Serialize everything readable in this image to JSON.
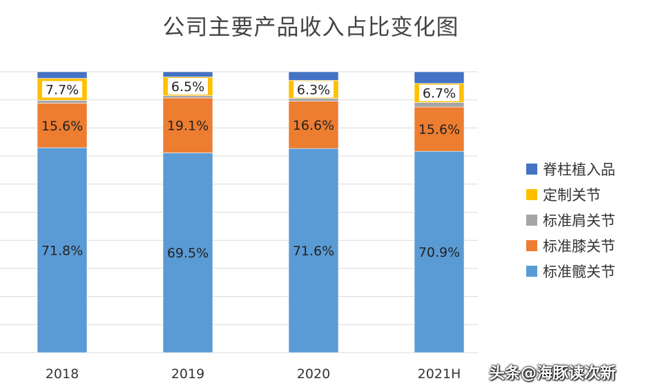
{
  "chart_data": {
    "type": "bar",
    "stacked": true,
    "percent": true,
    "title": "公司主要产品收入占比变化图",
    "categories": [
      "2018",
      "2019",
      "2020",
      "2021H"
    ],
    "series": [
      {
        "name": "标准髋关节",
        "color": "#5B9BD5",
        "values": [
          71.8,
          69.5,
          71.6,
          70.9
        ],
        "labels": [
          "71.8%",
          "69.5%",
          "71.6%",
          "70.9%"
        ]
      },
      {
        "name": "标准膝关节",
        "color": "#ED7D31",
        "values": [
          15.6,
          19.1,
          16.6,
          15.6
        ],
        "labels": [
          "15.6%",
          "19.1%",
          "16.6%",
          "15.6%"
        ]
      },
      {
        "name": "标准肩关节",
        "color": "#A5A5A5",
        "values": [
          1.0,
          0.8,
          1.0,
          1.6
        ],
        "labels": null
      },
      {
        "name": "定制关节",
        "color": "#FFC000",
        "values": [
          7.7,
          6.5,
          6.3,
          6.7
        ],
        "labels": [
          "7.7%",
          "6.5%",
          "6.3%",
          "6.7%"
        ]
      },
      {
        "name": "脊柱植入品",
        "color": "#4472C4",
        "values": [
          2.3,
          1.8,
          3.0,
          4.1
        ],
        "labels": null
      }
    ],
    "ylim": [
      0,
      100
    ],
    "grid": true,
    "legend_position": "right",
    "legend_order": [
      "脊柱植入品",
      "定制关节",
      "标准肩关节",
      "标准膝关节",
      "标准髋关节"
    ]
  },
  "watermark": "头条@海豚读次新"
}
